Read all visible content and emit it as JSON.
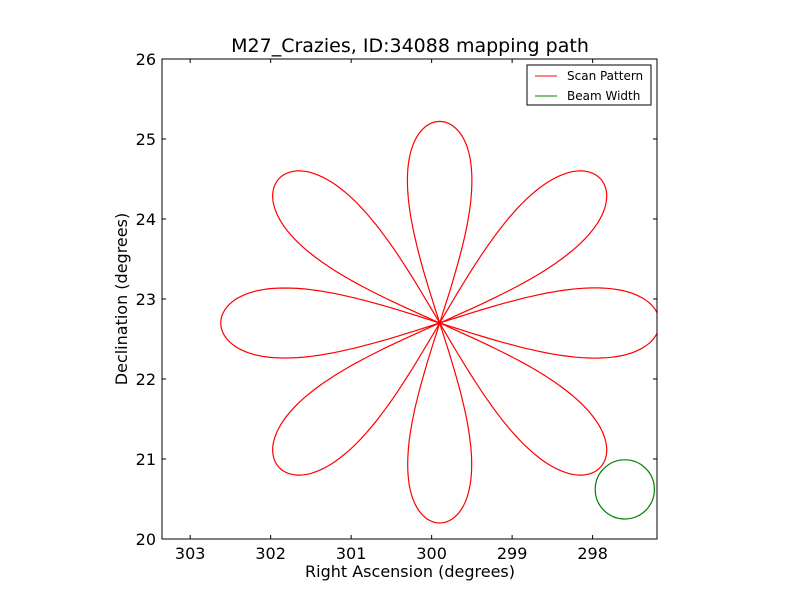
{
  "chart_data": {
    "type": "line",
    "title": "M27_Crazies, ID:34088 mapping path",
    "xlabel": "Right Ascension (degrees)",
    "ylabel": "Declination (degrees)",
    "xlim": [
      303.35,
      297.2
    ],
    "ylim": [
      20,
      26
    ],
    "x_inverted": true,
    "xticks": [
      303,
      302,
      301,
      300,
      299,
      298
    ],
    "yticks": [
      20,
      21,
      22,
      23,
      24,
      25,
      26
    ],
    "grid": false,
    "legend": {
      "placement": "top-right",
      "entries": [
        {
          "label": "Scan Pattern",
          "color": "#ff0000",
          "kind": "line"
        },
        {
          "label": "Beam Width",
          "color": "#008000",
          "kind": "line"
        }
      ]
    },
    "series": [
      {
        "name": "Scan Pattern",
        "color": "#ff0000",
        "shape": "eight-petal rose",
        "center": [
          299.9,
          22.7
        ],
        "petal_tips": [
          [
            299.9,
            25.22
          ],
          [
            297.9,
            24.5
          ],
          [
            297.17,
            22.7
          ],
          [
            297.9,
            20.9
          ],
          [
            299.9,
            20.2
          ],
          [
            301.9,
            20.9
          ],
          [
            302.62,
            22.7
          ],
          [
            301.9,
            24.5
          ]
        ]
      },
      {
        "name": "Beam Width",
        "color": "#008000",
        "shape": "circle",
        "center": [
          297.6,
          20.62
        ],
        "radius_dec": 0.37
      }
    ]
  }
}
